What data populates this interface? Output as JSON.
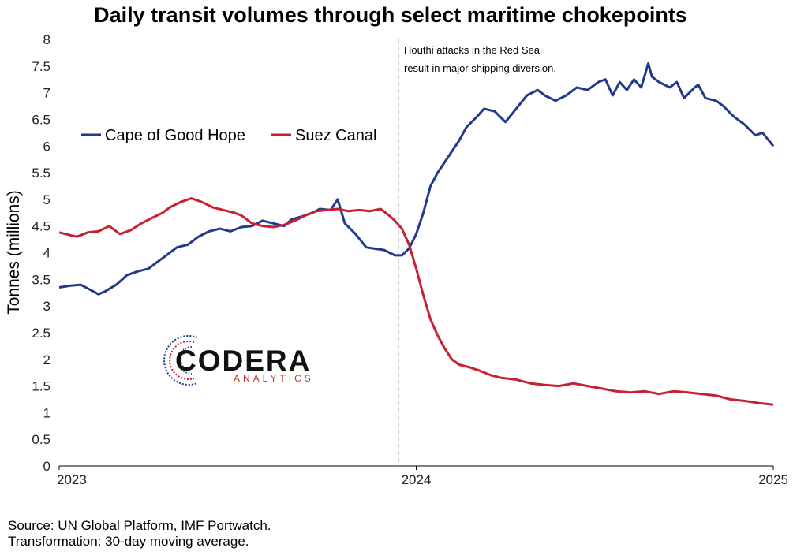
{
  "chart_data": {
    "type": "line",
    "title": "Daily transit volumes through select maritime chokepoints",
    "ylabel": "Tonnes (millions)",
    "xlabel": "",
    "ylim": [
      0,
      8
    ],
    "yticks": [
      "0",
      "0.5",
      "1",
      "1.5",
      "2",
      "2.5",
      "3",
      "3.5",
      "4",
      "4.5",
      "5",
      "5.5",
      "6",
      "6.5",
      "7",
      "7.5",
      "8"
    ],
    "xlim": [
      2023,
      2025
    ],
    "xticks": [
      {
        "value": 2023,
        "label": "2023"
      },
      {
        "value": 2024,
        "label": "2024"
      },
      {
        "value": 2025,
        "label": "2025"
      }
    ],
    "grid": false,
    "legend_position": "left, middle-upper",
    "annotation": {
      "x": 2023.95,
      "lines": [
        "Houthi attacks in the Red Sea",
        "result in major shipping diversion."
      ]
    },
    "series": [
      {
        "name": "Cape of Good Hope",
        "color": "#233a8c",
        "points": [
          [
            2023.0,
            3.35
          ],
          [
            2023.03,
            3.38
          ],
          [
            2023.06,
            3.4
          ],
          [
            2023.08,
            3.33
          ],
          [
            2023.11,
            3.22
          ],
          [
            2023.13,
            3.28
          ],
          [
            2023.16,
            3.4
          ],
          [
            2023.19,
            3.58
          ],
          [
            2023.22,
            3.65
          ],
          [
            2023.25,
            3.7
          ],
          [
            2023.28,
            3.85
          ],
          [
            2023.3,
            3.95
          ],
          [
            2023.33,
            4.1
          ],
          [
            2023.36,
            4.15
          ],
          [
            2023.39,
            4.3
          ],
          [
            2023.42,
            4.4
          ],
          [
            2023.45,
            4.45
          ],
          [
            2023.48,
            4.4
          ],
          [
            2023.51,
            4.48
          ],
          [
            2023.54,
            4.5
          ],
          [
            2023.57,
            4.6
          ],
          [
            2023.6,
            4.55
          ],
          [
            2023.63,
            4.5
          ],
          [
            2023.65,
            4.62
          ],
          [
            2023.68,
            4.68
          ],
          [
            2023.71,
            4.75
          ],
          [
            2023.73,
            4.82
          ],
          [
            2023.76,
            4.8
          ],
          [
            2023.78,
            5.0
          ],
          [
            2023.8,
            4.55
          ],
          [
            2023.83,
            4.35
          ],
          [
            2023.86,
            4.1
          ],
          [
            2023.88,
            4.08
          ],
          [
            2023.91,
            4.05
          ],
          [
            2023.94,
            3.95
          ],
          [
            2023.96,
            3.95
          ],
          [
            2023.98,
            4.08
          ],
          [
            2024.0,
            4.35
          ],
          [
            2024.02,
            4.75
          ],
          [
            2024.04,
            5.25
          ],
          [
            2024.06,
            5.5
          ],
          [
            2024.08,
            5.7
          ],
          [
            2024.1,
            5.9
          ],
          [
            2024.12,
            6.1
          ],
          [
            2024.14,
            6.35
          ],
          [
            2024.17,
            6.55
          ],
          [
            2024.19,
            6.7
          ],
          [
            2024.22,
            6.65
          ],
          [
            2024.25,
            6.45
          ],
          [
            2024.28,
            6.7
          ],
          [
            2024.31,
            6.95
          ],
          [
            2024.34,
            7.05
          ],
          [
            2024.36,
            6.95
          ],
          [
            2024.39,
            6.85
          ],
          [
            2024.42,
            6.95
          ],
          [
            2024.45,
            7.1
          ],
          [
            2024.48,
            7.05
          ],
          [
            2024.51,
            7.2
          ],
          [
            2024.53,
            7.25
          ],
          [
            2024.55,
            6.95
          ],
          [
            2024.57,
            7.2
          ],
          [
            2024.59,
            7.05
          ],
          [
            2024.61,
            7.25
          ],
          [
            2024.63,
            7.1
          ],
          [
            2024.65,
            7.55
          ],
          [
            2024.66,
            7.3
          ],
          [
            2024.68,
            7.2
          ],
          [
            2024.71,
            7.1
          ],
          [
            2024.73,
            7.2
          ],
          [
            2024.75,
            6.9
          ],
          [
            2024.78,
            7.1
          ],
          [
            2024.79,
            7.15
          ],
          [
            2024.81,
            6.9
          ],
          [
            2024.84,
            6.85
          ],
          [
            2024.86,
            6.75
          ],
          [
            2024.89,
            6.55
          ],
          [
            2024.92,
            6.4
          ],
          [
            2024.95,
            6.2
          ],
          [
            2024.97,
            6.25
          ],
          [
            2025.0,
            6.0
          ]
        ]
      },
      {
        "name": "Suez Canal",
        "color": "#c8202f",
        "points": [
          [
            2023.0,
            4.38
          ],
          [
            2023.03,
            4.33
          ],
          [
            2023.05,
            4.3
          ],
          [
            2023.08,
            4.38
          ],
          [
            2023.11,
            4.4
          ],
          [
            2023.14,
            4.5
          ],
          [
            2023.17,
            4.35
          ],
          [
            2023.2,
            4.42
          ],
          [
            2023.23,
            4.55
          ],
          [
            2023.26,
            4.65
          ],
          [
            2023.29,
            4.75
          ],
          [
            2023.31,
            4.85
          ],
          [
            2023.34,
            4.95
          ],
          [
            2023.37,
            5.02
          ],
          [
            2023.4,
            4.95
          ],
          [
            2023.43,
            4.85
          ],
          [
            2023.46,
            4.8
          ],
          [
            2023.49,
            4.75
          ],
          [
            2023.51,
            4.7
          ],
          [
            2023.54,
            4.55
          ],
          [
            2023.57,
            4.5
          ],
          [
            2023.6,
            4.48
          ],
          [
            2023.63,
            4.52
          ],
          [
            2023.66,
            4.6
          ],
          [
            2023.69,
            4.7
          ],
          [
            2023.72,
            4.78
          ],
          [
            2023.75,
            4.8
          ],
          [
            2023.78,
            4.82
          ],
          [
            2023.81,
            4.78
          ],
          [
            2023.84,
            4.8
          ],
          [
            2023.87,
            4.78
          ],
          [
            2023.9,
            4.82
          ],
          [
            2023.92,
            4.72
          ],
          [
            2023.94,
            4.6
          ],
          [
            2023.96,
            4.45
          ],
          [
            2023.98,
            4.15
          ],
          [
            2024.0,
            3.7
          ],
          [
            2024.02,
            3.2
          ],
          [
            2024.04,
            2.75
          ],
          [
            2024.06,
            2.45
          ],
          [
            2024.08,
            2.2
          ],
          [
            2024.1,
            2.0
          ],
          [
            2024.12,
            1.9
          ],
          [
            2024.15,
            1.85
          ],
          [
            2024.18,
            1.78
          ],
          [
            2024.21,
            1.7
          ],
          [
            2024.24,
            1.65
          ],
          [
            2024.28,
            1.62
          ],
          [
            2024.32,
            1.55
          ],
          [
            2024.36,
            1.52
          ],
          [
            2024.4,
            1.5
          ],
          [
            2024.44,
            1.55
          ],
          [
            2024.48,
            1.5
          ],
          [
            2024.52,
            1.45
          ],
          [
            2024.56,
            1.4
          ],
          [
            2024.6,
            1.38
          ],
          [
            2024.64,
            1.4
          ],
          [
            2024.68,
            1.35
          ],
          [
            2024.72,
            1.4
          ],
          [
            2024.76,
            1.38
          ],
          [
            2024.8,
            1.35
          ],
          [
            2024.84,
            1.32
          ],
          [
            2024.88,
            1.25
          ],
          [
            2024.92,
            1.22
          ],
          [
            2024.96,
            1.18
          ],
          [
            2025.0,
            1.15
          ]
        ]
      }
    ]
  },
  "logo": {
    "name": "CODERA",
    "tagline": "ANALYTICS",
    "mark_colors": [
      "#233a8c",
      "#c8202f"
    ]
  },
  "footer": {
    "source": "Source: UN Global Platform, IMF Portwatch.",
    "transformation": "Transformation: 30-day moving average."
  }
}
